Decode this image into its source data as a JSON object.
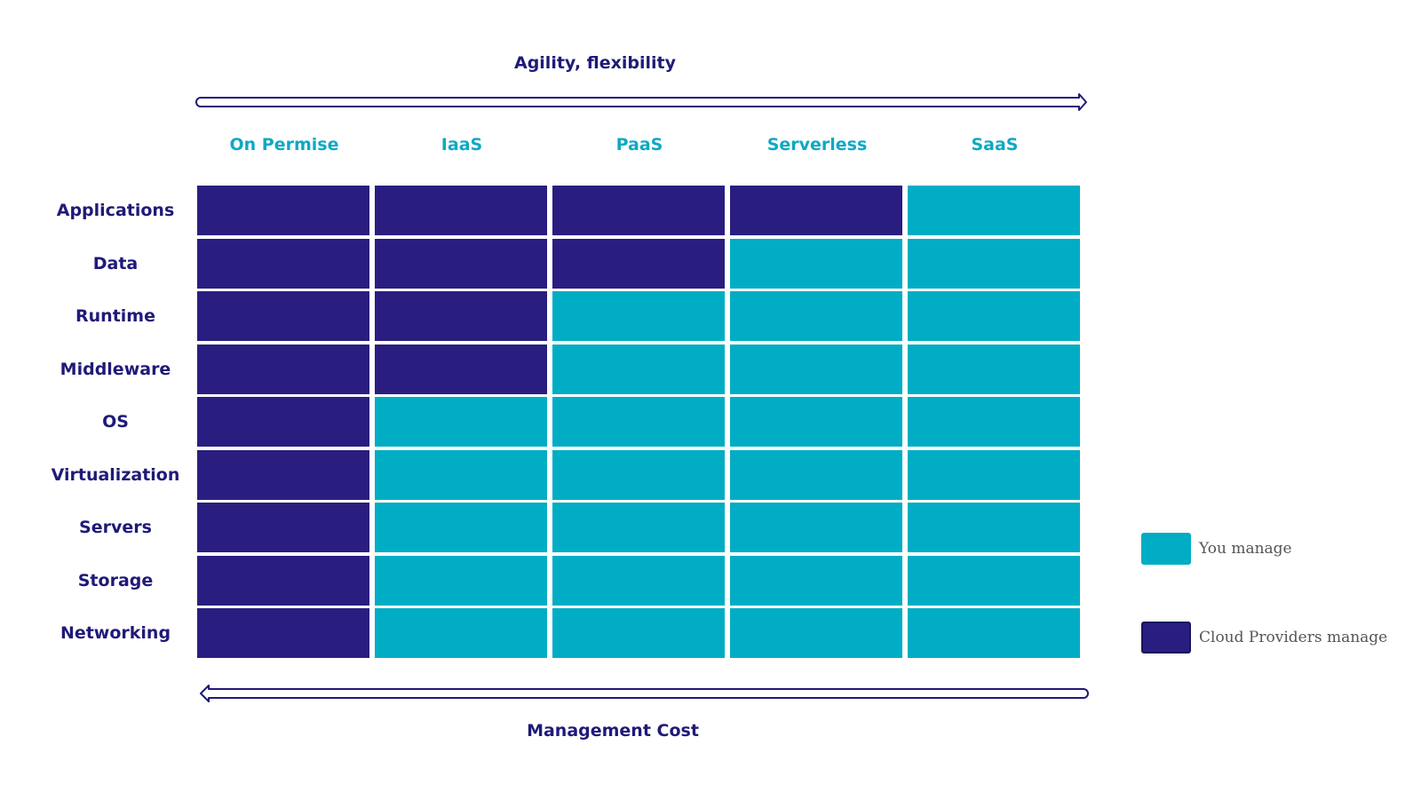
{
  "top_heading": "Agility, flexibility",
  "bottom_heading": "Management Cost",
  "columns": [
    "On Permise",
    "IaaS",
    "PaaS",
    "Serverless",
    "SaaS"
  ],
  "rows": [
    {
      "label": "Applications",
      "cells": [
        "provider",
        "provider",
        "provider",
        "provider",
        "you"
      ]
    },
    {
      "label": "Data",
      "cells": [
        "provider",
        "provider",
        "provider",
        "you",
        "you"
      ]
    },
    {
      "label": "Runtime",
      "cells": [
        "provider",
        "provider",
        "you",
        "you",
        "you"
      ]
    },
    {
      "label": "Middleware",
      "cells": [
        "provider",
        "provider",
        "you",
        "you",
        "you"
      ]
    },
    {
      "label": "OS",
      "cells": [
        "provider",
        "you",
        "you",
        "you",
        "you"
      ]
    },
    {
      "label": "Virtualization",
      "cells": [
        "provider",
        "you",
        "you",
        "you",
        "you"
      ]
    },
    {
      "label": "Servers",
      "cells": [
        "provider",
        "you",
        "you",
        "you",
        "you"
      ]
    },
    {
      "label": "Storage",
      "cells": [
        "provider",
        "you",
        "you",
        "you",
        "you"
      ]
    },
    {
      "label": "Networking",
      "cells": [
        "provider",
        "you",
        "you",
        "you",
        "you"
      ]
    }
  ],
  "legend": {
    "you": {
      "label": "You manage",
      "color": "#00adc4"
    },
    "provider": {
      "label": "Cloud Providers manage",
      "color": "#291e80"
    }
  },
  "colors": {
    "heading": "#1f1a78",
    "column_header": "#0ea9c3",
    "arrow": "#1f1a78"
  }
}
